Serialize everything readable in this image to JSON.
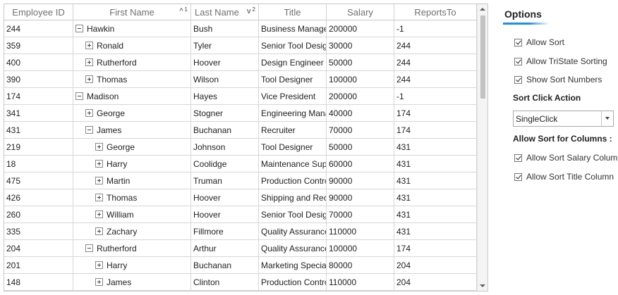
{
  "grid": {
    "columns": [
      "Employee ID",
      "First Name",
      "Last Name",
      "Title",
      "Salary",
      "ReportsTo"
    ],
    "sort": {
      "first_name": {
        "arrow": "^",
        "number": "1"
      },
      "last_name": {
        "arrow": "v",
        "number": "2"
      }
    },
    "rows": [
      {
        "id": "244",
        "first": "Hawkin",
        "last": "Bush",
        "title": "Business Manager",
        "salary": "200000",
        "reports": "-1",
        "level": 0,
        "exp": "minus"
      },
      {
        "id": "359",
        "first": "Ronald",
        "last": "Tyler",
        "title": "Senior Tool Designer",
        "salary": "30000",
        "reports": "244",
        "level": 1,
        "exp": "plus"
      },
      {
        "id": "400",
        "first": "Rutherford",
        "last": "Hoover",
        "title": "Design Engineer",
        "salary": "50000",
        "reports": "244",
        "level": 1,
        "exp": "plus"
      },
      {
        "id": "390",
        "first": "Thomas",
        "last": "Wilson",
        "title": "Tool Designer",
        "salary": "100000",
        "reports": "244",
        "level": 1,
        "exp": "plus"
      },
      {
        "id": "174",
        "first": "Madison",
        "last": "Hayes",
        "title": "Vice President",
        "salary": "200000",
        "reports": "-1",
        "level": 0,
        "exp": "minus"
      },
      {
        "id": "341",
        "first": "George",
        "last": "Stogner",
        "title": "Engineering Manager",
        "salary": "40000",
        "reports": "174",
        "level": 1,
        "exp": "plus"
      },
      {
        "id": "431",
        "first": "James",
        "last": "Buchanan",
        "title": "Recruiter",
        "salary": "70000",
        "reports": "174",
        "level": 1,
        "exp": "minus"
      },
      {
        "id": "219",
        "first": "George",
        "last": "Johnson",
        "title": "Tool Designer",
        "salary": "50000",
        "reports": "431",
        "level": 2,
        "exp": "plus"
      },
      {
        "id": "18",
        "first": "Harry",
        "last": "Coolidge",
        "title": "Maintenance Supervisor",
        "salary": "60000",
        "reports": "431",
        "level": 2,
        "exp": "plus"
      },
      {
        "id": "475",
        "first": "Martin",
        "last": "Truman",
        "title": "Production Control",
        "salary": "90000",
        "reports": "431",
        "level": 2,
        "exp": "plus"
      },
      {
        "id": "426",
        "first": "Thomas",
        "last": "Hoover",
        "title": "Shipping and Receiving",
        "salary": "90000",
        "reports": "431",
        "level": 2,
        "exp": "plus"
      },
      {
        "id": "260",
        "first": "William",
        "last": "Hoover",
        "title": "Senior Tool Designer",
        "salary": "70000",
        "reports": "431",
        "level": 2,
        "exp": "plus"
      },
      {
        "id": "335",
        "first": "Zachary",
        "last": "Fillmore",
        "title": "Quality Assurance",
        "salary": "110000",
        "reports": "431",
        "level": 2,
        "exp": "plus"
      },
      {
        "id": "204",
        "first": "Rutherford",
        "last": "Arthur",
        "title": "Quality Assurance",
        "salary": "100000",
        "reports": "174",
        "level": 1,
        "exp": "minus"
      },
      {
        "id": "201",
        "first": "Harry",
        "last": "Buchanan",
        "title": "Marketing Specialist",
        "salary": "80000",
        "reports": "204",
        "level": 2,
        "exp": "plus"
      },
      {
        "id": "148",
        "first": "James",
        "last": "Clinton",
        "title": "Production Control",
        "salary": "110000",
        "reports": "204",
        "level": 2,
        "exp": "plus"
      }
    ]
  },
  "options": {
    "title": "Options",
    "allow_sort": "Allow Sort",
    "allow_tristate": "Allow TriState Sorting",
    "show_sort_numbers": "Show Sort Numbers",
    "sort_click_action_label": "Sort Click Action",
    "sort_click_action_value": "SingleClick",
    "allow_sort_columns_label": "Allow Sort for Columns :",
    "allow_sort_salary": "Allow Sort Salary Column",
    "allow_sort_title": "Allow Sort Title Column"
  },
  "colors": {
    "accent": "#1f8fe0",
    "grid_line": "#d6d6d6",
    "header_text": "#707070"
  }
}
